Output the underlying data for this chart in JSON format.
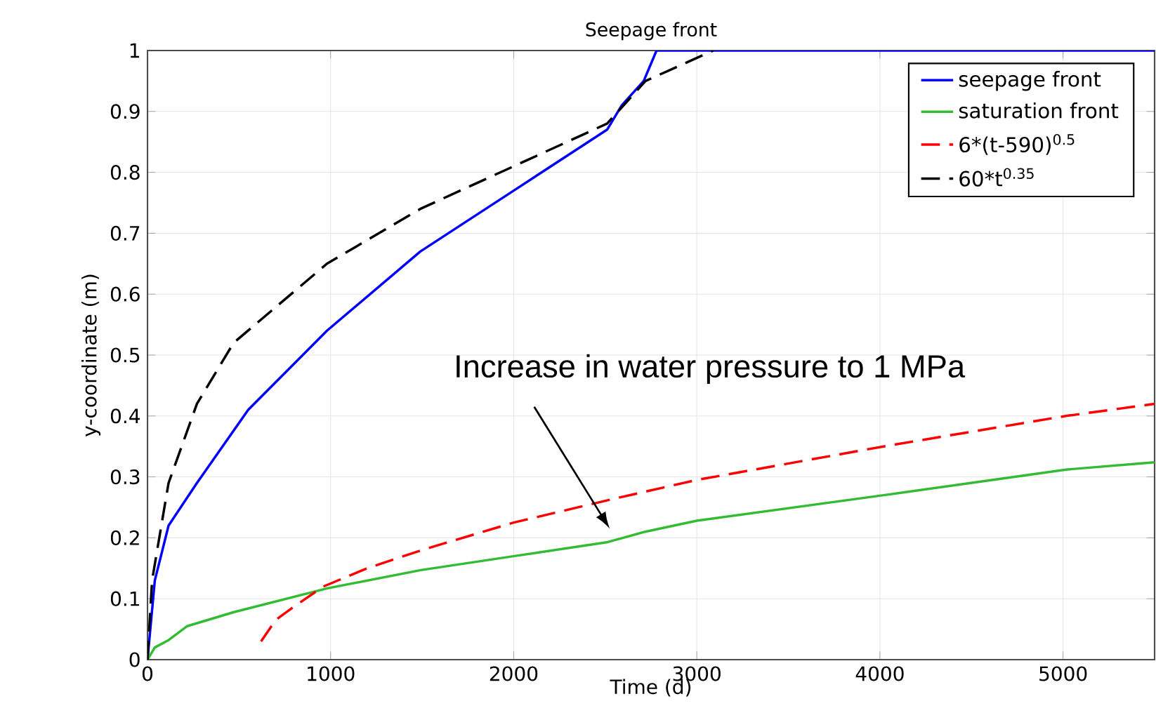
{
  "chart_data": {
    "type": "line",
    "title": "Seepage front",
    "xlabel": "Time (d)",
    "ylabel": "y-coordinate (m)",
    "xlim": [
      0,
      5500
    ],
    "ylim": [
      0,
      1
    ],
    "xticks": [
      0,
      1000,
      2000,
      3000,
      4000,
      5000
    ],
    "yticks": [
      0,
      0.1,
      0.2,
      0.3,
      0.4,
      0.5,
      0.6,
      0.7,
      0.8,
      0.9,
      1
    ],
    "grid": true,
    "legend": "top right",
    "marker": "none",
    "annotations": [
      "Increase in water pressure to 1 MPa"
    ],
    "series": [
      {
        "name": "seepage front",
        "color": "#0000ff",
        "line_style": "solid",
        "x": [
          0,
          40,
          115,
          270,
          550,
          980,
          1490,
          2000,
          2510,
          2590,
          2710,
          2780,
          5500
        ],
        "values": [
          0,
          0.13,
          0.22,
          0.29,
          0.41,
          0.54,
          0.67,
          0.77,
          0.87,
          0.91,
          0.95,
          1.0,
          1.0
        ]
      },
      {
        "name": "saturation front",
        "color": "#33bb33",
        "line_style": "solid",
        "x": [
          0,
          40,
          115,
          217,
          472,
          982,
          1493,
          2004,
          2514,
          2718,
          3000,
          4020,
          5015,
          5500
        ],
        "values": [
          0,
          0.02,
          0.032,
          0.055,
          0.078,
          0.117,
          0.147,
          0.17,
          0.193,
          0.21,
          0.228,
          0.27,
          0.312,
          0.324
        ]
      },
      {
        "name": "6*(t-590)$^{0.5}$",
        "color": "#ff0000",
        "line_style": "dashed",
        "x": [
          620,
          700,
          800,
          960,
          1200,
          1500,
          2000,
          2560,
          3000,
          4020,
          5015,
          5500
        ],
        "values": [
          0.03,
          0.065,
          0.087,
          0.12,
          0.15,
          0.18,
          0.225,
          0.265,
          0.295,
          0.35,
          0.4,
          0.42
        ]
      },
      {
        "name": "60*t$^{0.35}$",
        "color": "#000000",
        "line_style": "dashed",
        "x": [
          0,
          25,
          115,
          270,
          470,
          980,
          1490,
          2000,
          2510,
          2720,
          3090
        ],
        "values": [
          0,
          0.13,
          0.29,
          0.42,
          0.52,
          0.65,
          0.74,
          0.81,
          0.88,
          0.95,
          1.0
        ]
      }
    ]
  }
}
